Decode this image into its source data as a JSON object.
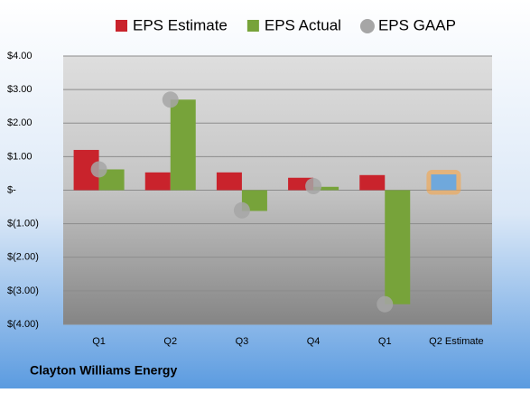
{
  "chart_data": {
    "type": "bar",
    "title": "Clayton Williams Energy",
    "categories": [
      "Q1",
      "Q2",
      "Q3",
      "Q4",
      "Q1",
      "Q2 Estimate"
    ],
    "series": [
      {
        "name": "EPS Estimate",
        "color": "#c9232c",
        "colors": [
          "#c9232c",
          "#c9232c",
          "#c9232c",
          "#c9232c",
          "#c9232c",
          "#6fa8dc"
        ],
        "glow": "#f5a54a",
        "values": [
          1.2,
          0.53,
          0.53,
          0.37,
          0.45,
          0.47
        ]
      },
      {
        "name": "EPS Actual",
        "color": "#77a33a",
        "values": [
          0.62,
          2.7,
          -0.62,
          0.1,
          -3.4,
          null
        ]
      },
      {
        "name": "EPS GAAP",
        "type": "scatter",
        "color": "#a6a6a6",
        "values": [
          0.62,
          2.7,
          -0.6,
          0.12,
          -3.4,
          null
        ]
      }
    ],
    "ylim": [
      -4,
      4
    ],
    "yticks": [
      {
        "value": 4,
        "label": "$4.00"
      },
      {
        "value": 3,
        "label": "$3.00"
      },
      {
        "value": 2,
        "label": "$2.00"
      },
      {
        "value": 1,
        "label": "$1.00"
      },
      {
        "value": 0,
        "label": "$-"
      },
      {
        "value": -1,
        "label": "$(1.00)"
      },
      {
        "value": -2,
        "label": "$(2.00)"
      },
      {
        "value": -3,
        "label": "$(3.00)"
      },
      {
        "value": -4,
        "label": "$(4.00)"
      }
    ],
    "grid": true,
    "legend": "top"
  }
}
